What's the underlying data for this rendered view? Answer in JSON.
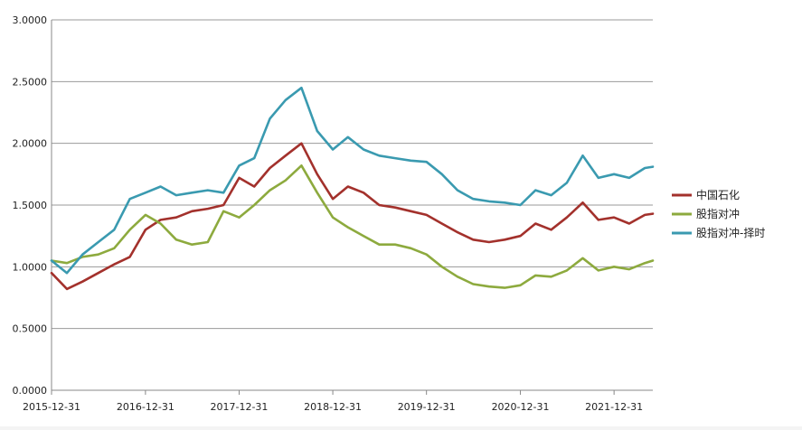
{
  "chart_data": {
    "type": "line",
    "title": "",
    "xlabel": "",
    "ylabel": "",
    "ylim": [
      0,
      3
    ],
    "y_ticks": [
      "0.0000",
      "0.5000",
      "1.0000",
      "1.5000",
      "2.0000",
      "2.5000",
      "3.0000"
    ],
    "x_ticks": [
      "2015-12-31",
      "2016-12-31",
      "2017-12-31",
      "2018-12-31",
      "2019-12-31",
      "2020-12-31",
      "2021-12-31"
    ],
    "xlim": [
      "2015-12-31",
      "2022-05-31"
    ],
    "grid": "horizontal",
    "legend": "right",
    "x": [
      "2015-12-31",
      "2016-02-29",
      "2016-04-30",
      "2016-06-30",
      "2016-08-31",
      "2016-10-31",
      "2016-12-31",
      "2017-02-28",
      "2017-04-30",
      "2017-06-30",
      "2017-08-31",
      "2017-10-31",
      "2017-12-31",
      "2018-02-28",
      "2018-04-30",
      "2018-06-30",
      "2018-08-31",
      "2018-10-31",
      "2018-12-31",
      "2019-02-28",
      "2019-04-30",
      "2019-06-30",
      "2019-08-31",
      "2019-10-31",
      "2019-12-31",
      "2020-02-29",
      "2020-04-30",
      "2020-06-30",
      "2020-08-31",
      "2020-10-31",
      "2020-12-31",
      "2021-02-28",
      "2021-04-30",
      "2021-06-30",
      "2021-08-31",
      "2021-10-31",
      "2021-12-31",
      "2022-02-28",
      "2022-04-30",
      "2022-05-31"
    ],
    "series": [
      {
        "name": "中国石化",
        "color": "#a3312c",
        "values": [
          0.95,
          0.82,
          0.88,
          0.95,
          1.02,
          1.08,
          1.3,
          1.38,
          1.4,
          1.45,
          1.47,
          1.5,
          1.72,
          1.65,
          1.8,
          1.9,
          2.0,
          1.75,
          1.55,
          1.65,
          1.6,
          1.5,
          1.48,
          1.45,
          1.42,
          1.35,
          1.28,
          1.22,
          1.2,
          1.22,
          1.25,
          1.35,
          1.3,
          1.4,
          1.52,
          1.38,
          1.4,
          1.35,
          1.42,
          1.43
        ]
      },
      {
        "name": "股指对冲",
        "color": "#8daa3e",
        "values": [
          1.05,
          1.03,
          1.08,
          1.1,
          1.15,
          1.3,
          1.42,
          1.35,
          1.22,
          1.18,
          1.2,
          1.45,
          1.4,
          1.5,
          1.62,
          1.7,
          1.82,
          1.6,
          1.4,
          1.32,
          1.25,
          1.18,
          1.18,
          1.15,
          1.1,
          1.0,
          0.92,
          0.86,
          0.84,
          0.83,
          0.85,
          0.93,
          0.92,
          0.97,
          1.07,
          0.97,
          1.0,
          0.98,
          1.03,
          1.05
        ]
      },
      {
        "name": "股指对冲-择时",
        "color": "#3a9ab0",
        "values": [
          1.05,
          0.95,
          1.1,
          1.2,
          1.3,
          1.55,
          1.6,
          1.65,
          1.58,
          1.6,
          1.62,
          1.6,
          1.82,
          1.88,
          2.2,
          2.35,
          2.45,
          2.1,
          1.95,
          2.05,
          1.95,
          1.9,
          1.88,
          1.86,
          1.85,
          1.75,
          1.62,
          1.55,
          1.53,
          1.52,
          1.5,
          1.62,
          1.58,
          1.68,
          1.9,
          1.72,
          1.75,
          1.72,
          1.8,
          1.81
        ]
      }
    ]
  }
}
